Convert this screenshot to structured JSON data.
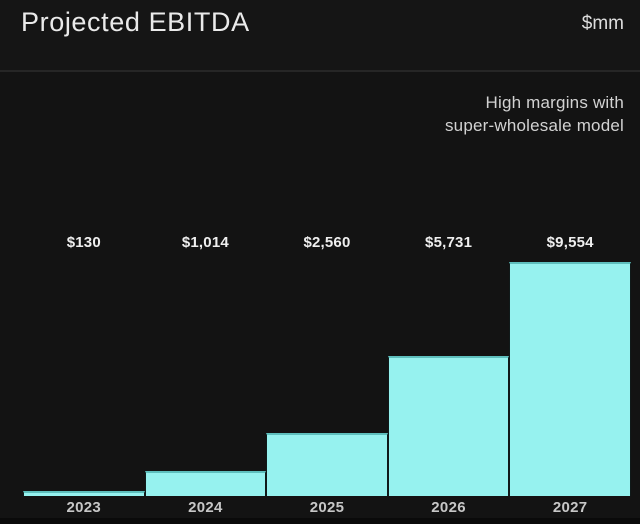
{
  "header": {
    "title": "Projected EBITDA",
    "unit": "$mm"
  },
  "subtitle": {
    "line1": "High margins with",
    "line2": "super-wholesale model"
  },
  "colors": {
    "background": "#131313",
    "bar_fill": "#96f2ef",
    "bar_edge": "#5ebfbd",
    "title_text": "#eaeaea",
    "divider": "#262626"
  },
  "chart_data": {
    "type": "bar",
    "title": "Projected EBITDA",
    "unit": "$mm",
    "annotation": "High margins with super-wholesale model",
    "categories": [
      "2023",
      "2024",
      "2025",
      "2026",
      "2027"
    ],
    "values": [
      130,
      1014,
      2560,
      5731,
      9554
    ],
    "value_labels": [
      "$130",
      "$1,014",
      "$2,560",
      "$5,731",
      "$9,554"
    ],
    "ylim": [
      0,
      9554
    ],
    "grid": false,
    "legend": false,
    "bar_color": "#96f2ef"
  }
}
